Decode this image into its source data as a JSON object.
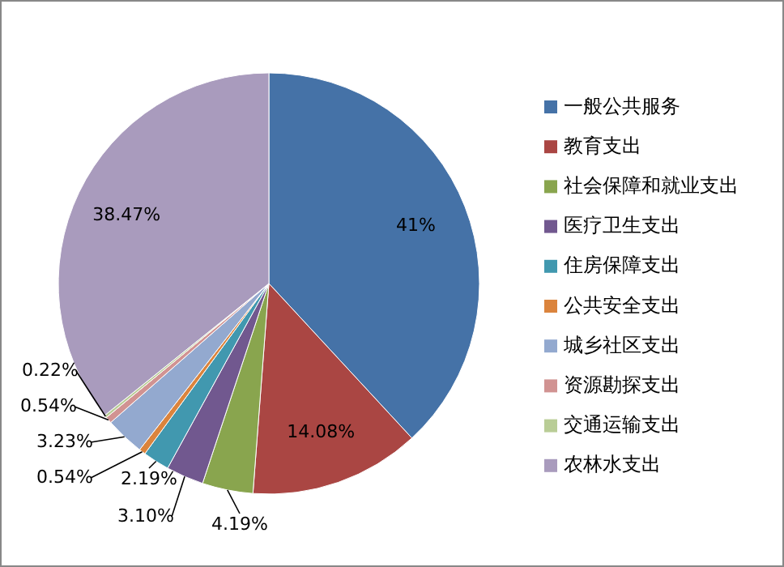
{
  "chart_data": {
    "type": "pie",
    "categories": [
      "一般公共服务",
      "教育支出",
      "社会保障和就业支出",
      "医疗卫生支出",
      "住房保障支出",
      "公共安全支出",
      "城乡社区支出",
      "资源勘探支出",
      "交通运输支出",
      "农林水支出"
    ],
    "values": [
      41,
      14.08,
      4.19,
      3.1,
      2.19,
      0.54,
      3.23,
      0.54,
      0.22,
      38.47
    ],
    "value_labels": [
      "41%",
      "14.08%",
      "4.19%",
      "3.10%",
      "2.19%",
      "0.54%",
      "3.23%",
      "0.54%",
      "0.22%",
      "38.47%"
    ],
    "colors": [
      "#4572a7",
      "#aa4643",
      "#89a54e",
      "#71588f",
      "#4198af",
      "#db843d",
      "#93a9cf",
      "#d19392",
      "#b9cd96",
      "#a99bbd"
    ],
    "legend": "right"
  }
}
